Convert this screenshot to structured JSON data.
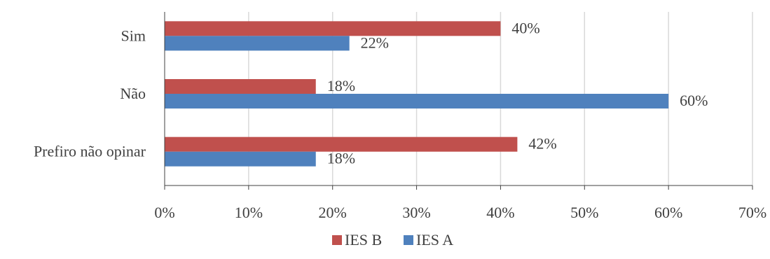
{
  "chart_data": {
    "type": "bar",
    "orientation": "horizontal",
    "categories": [
      "Sim",
      "Não",
      "Prefiro não opinar"
    ],
    "series": [
      {
        "name": "IES B",
        "color": "#c0504d",
        "values": [
          40,
          18,
          42
        ],
        "labels": [
          "40%",
          "18%",
          "42%"
        ]
      },
      {
        "name": "IES A",
        "color": "#4f81bd",
        "values": [
          22,
          60,
          18
        ],
        "labels": [
          "22%",
          "60%",
          "18%"
        ]
      }
    ],
    "xlim": [
      0,
      70
    ],
    "x_ticks": [
      0,
      10,
      20,
      30,
      40,
      50,
      60,
      70
    ],
    "x_tick_labels": [
      "0%",
      "10%",
      "20%",
      "30%",
      "40%",
      "50%",
      "60%",
      "70%"
    ],
    "grid": true,
    "legend_position": "bottom"
  }
}
